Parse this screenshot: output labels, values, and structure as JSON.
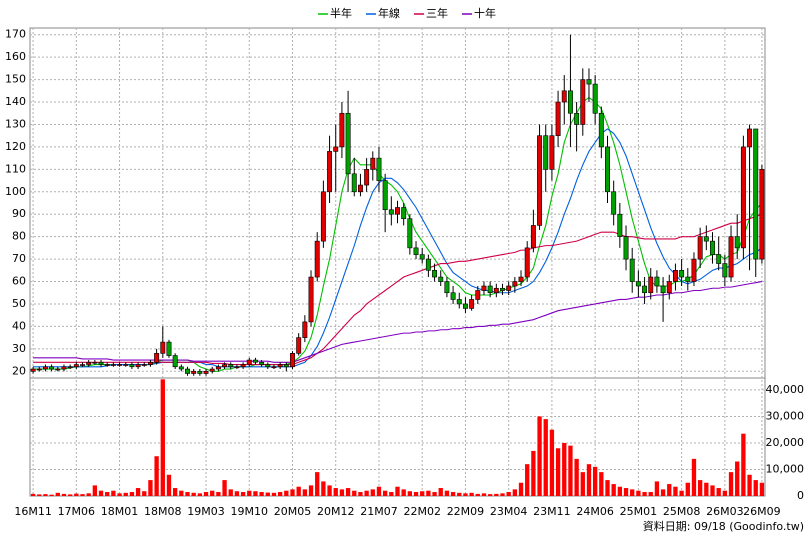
{
  "chart_data": {
    "type": "candlestick",
    "legend": [
      "半年",
      "年線",
      "三年",
      "十年"
    ],
    "footer": "資料日期: 09/18 (Goodinfo.tw)",
    "up_color": "#e00000",
    "down_color": "#00a000",
    "grid": true,
    "ylim": [
      17,
      173
    ],
    "yticks": [
      20,
      30,
      40,
      50,
      60,
      70,
      80,
      90,
      100,
      110,
      120,
      130,
      140,
      150,
      160,
      170
    ],
    "y2lim": [
      0,
      44500
    ],
    "y2ticks": [
      {
        "value": 0,
        "label": "0"
      },
      {
        "value": 10000,
        "label": "10,000"
      },
      {
        "value": 20000,
        "label": "20,000"
      },
      {
        "value": 30000,
        "label": "30,000"
      },
      {
        "value": 40000,
        "label": "40,000"
      }
    ],
    "volume_color": "#ff0000",
    "categories": [
      "16M11",
      null,
      null,
      null,
      null,
      null,
      null,
      "17M06",
      null,
      null,
      null,
      null,
      null,
      null,
      "18M01",
      null,
      null,
      null,
      null,
      null,
      null,
      "18M08",
      null,
      null,
      null,
      null,
      null,
      null,
      "19M03",
      null,
      null,
      null,
      null,
      null,
      null,
      "19M10",
      null,
      null,
      null,
      null,
      null,
      null,
      "20M05",
      null,
      null,
      null,
      null,
      null,
      null,
      "20M12",
      null,
      null,
      null,
      null,
      null,
      null,
      "21M07",
      null,
      null,
      null,
      null,
      null,
      null,
      "22M02",
      null,
      null,
      null,
      null,
      null,
      null,
      "22M09",
      null,
      null,
      null,
      null,
      null,
      null,
      "23M04",
      null,
      null,
      null,
      null,
      null,
      null,
      "23M11",
      null,
      null,
      null,
      null,
      null,
      null,
      "24M06",
      null,
      null,
      null,
      null,
      null,
      null,
      "25M01",
      null,
      null,
      null,
      null,
      null,
      null,
      "25M08",
      null,
      null,
      null,
      null,
      null,
      null,
      "26M03",
      null,
      null,
      null,
      null,
      null,
      "26M09"
    ],
    "open": [
      20,
      21,
      21,
      22,
      21,
      21,
      22,
      22,
      23,
      23,
      24,
      24,
      23,
      23,
      23,
      23,
      23,
      22,
      23,
      23,
      24,
      28,
      33,
      27,
      22,
      21,
      19,
      20,
      19,
      20,
      21,
      22,
      23,
      22,
      22,
      23,
      25,
      24,
      23,
      22,
      22,
      23,
      22,
      28,
      35,
      42,
      62,
      78,
      100,
      118,
      120,
      135,
      108,
      100,
      103,
      110,
      115,
      105,
      92,
      90,
      93,
      88,
      75,
      72,
      70,
      65,
      62,
      60,
      55,
      52,
      50,
      48,
      52,
      56,
      58,
      55,
      57,
      56,
      58,
      60,
      62,
      75,
      85,
      125,
      110,
      125,
      140,
      145,
      135,
      130,
      150,
      148,
      135,
      120,
      100,
      90,
      80,
      70,
      60,
      58,
      55,
      62,
      58,
      55,
      60,
      65,
      62,
      60,
      70,
      80,
      78,
      72,
      68,
      62,
      80,
      75,
      120,
      128,
      70
    ],
    "high": [
      22,
      22,
      23,
      23,
      22,
      23,
      23,
      24,
      24,
      25,
      25,
      25,
      24,
      24,
      24,
      24,
      24,
      24,
      24,
      25,
      30,
      40,
      34,
      28,
      23,
      22,
      21,
      21,
      21,
      22,
      23,
      24,
      24,
      23,
      24,
      26,
      26,
      25,
      24,
      23,
      24,
      24,
      29,
      37,
      45,
      65,
      82,
      105,
      125,
      130,
      140,
      145,
      115,
      108,
      115,
      118,
      120,
      108,
      98,
      96,
      95,
      90,
      78,
      75,
      72,
      68,
      65,
      62,
      58,
      55,
      53,
      54,
      58,
      60,
      60,
      59,
      59,
      60,
      62,
      65,
      78,
      92,
      130,
      130,
      130,
      145,
      152,
      170,
      140,
      155,
      155,
      152,
      138,
      125,
      105,
      95,
      85,
      75,
      65,
      62,
      66,
      65,
      62,
      63,
      68,
      70,
      66,
      73,
      84,
      85,
      82,
      80,
      72,
      85,
      90,
      125,
      130,
      128,
      112
    ],
    "low": [
      19,
      20,
      20,
      20,
      20,
      20,
      21,
      21,
      22,
      22,
      23,
      22,
      22,
      22,
      22,
      22,
      21,
      21,
      22,
      22,
      23,
      26,
      26,
      21,
      20,
      18,
      18,
      18,
      18,
      19,
      20,
      21,
      21,
      21,
      21,
      22,
      23,
      22,
      21,
      21,
      21,
      20,
      21,
      27,
      33,
      40,
      60,
      75,
      95,
      100,
      115,
      100,
      98,
      98,
      100,
      105,
      100,
      82,
      85,
      86,
      85,
      72,
      70,
      68,
      62,
      60,
      58,
      53,
      50,
      48,
      46,
      47,
      50,
      54,
      53,
      53,
      54,
      54,
      55,
      58,
      60,
      73,
      83,
      100,
      105,
      120,
      130,
      120,
      118,
      125,
      140,
      130,
      115,
      95,
      85,
      75,
      65,
      55,
      53,
      50,
      52,
      55,
      42,
      52,
      56,
      58,
      56,
      58,
      66,
      74,
      68,
      65,
      58,
      60,
      70,
      70,
      65,
      62,
      68
    ],
    "close": [
      21,
      21,
      22,
      21,
      21,
      22,
      22,
      23,
      23,
      24,
      24,
      23,
      23,
      23,
      23,
      23,
      22,
      23,
      23,
      24,
      28,
      33,
      27,
      22,
      21,
      19,
      20,
      19,
      20,
      21,
      22,
      23,
      22,
      22,
      23,
      25,
      24,
      23,
      22,
      22,
      23,
      22,
      28,
      35,
      42,
      62,
      78,
      100,
      118,
      120,
      135,
      108,
      100,
      103,
      110,
      115,
      105,
      92,
      90,
      93,
      88,
      75,
      72,
      70,
      65,
      62,
      60,
      55,
      52,
      50,
      48,
      52,
      56,
      58,
      55,
      57,
      56,
      58,
      60,
      62,
      75,
      85,
      125,
      110,
      125,
      140,
      145,
      135,
      130,
      150,
      148,
      135,
      120,
      100,
      90,
      80,
      70,
      60,
      58,
      55,
      62,
      58,
      55,
      60,
      65,
      62,
      60,
      70,
      80,
      78,
      72,
      68,
      62,
      80,
      75,
      120,
      128,
      70,
      110
    ],
    "volume": [
      800,
      600,
      700,
      500,
      1200,
      800,
      600,
      900,
      700,
      1000,
      4000,
      2000,
      1500,
      2000,
      1000,
      1200,
      1500,
      3000,
      1800,
      6000,
      15000,
      44000,
      8000,
      3000,
      2000,
      1500,
      1200,
      1000,
      1500,
      2000,
      1500,
      6000,
      2500,
      1800,
      1500,
      2000,
      1800,
      1500,
      1300,
      1200,
      1500,
      2000,
      2500,
      3500,
      2500,
      4000,
      9000,
      5500,
      4000,
      3000,
      2500,
      3000,
      2000,
      1500,
      2000,
      2500,
      3500,
      2000,
      1500,
      3500,
      2500,
      1800,
      1500,
      1800,
      2000,
      1500,
      3000,
      2000,
      1500,
      1200,
      1000,
      1200,
      800,
      1000,
      700,
      800,
      1000,
      1500,
      2500,
      5000,
      12000,
      17000,
      30000,
      29000,
      25000,
      18000,
      20000,
      19000,
      14000,
      9000,
      12000,
      11000,
      9000,
      6000,
      4500,
      3500,
      3000,
      2500,
      2000,
      1500,
      1500,
      5500,
      2500,
      4500,
      3500,
      2000,
      5000,
      14000,
      6000,
      5000,
      4000,
      3000,
      2000,
      9000,
      13000,
      23500,
      8000,
      6000,
      5000
    ],
    "series": [
      {
        "name": "半年",
        "color": "#00c000",
        "values": [
          21,
          21,
          21,
          21,
          21,
          21,
          21.5,
          22,
          22,
          22.5,
          23,
          23,
          23,
          23,
          23,
          23,
          23,
          23,
          23,
          23,
          24,
          25,
          25,
          25,
          25,
          25,
          24,
          22,
          21,
          20,
          20,
          21,
          21,
          22,
          22,
          22,
          23,
          23,
          23,
          23,
          23,
          23,
          24,
          26,
          29,
          35,
          45,
          58,
          70,
          85,
          100,
          110,
          115,
          112,
          112,
          112,
          108,
          105,
          103,
          100,
          95,
          88,
          82,
          78,
          74,
          70,
          66,
          62,
          60,
          58,
          55,
          54,
          54,
          54,
          54,
          55,
          56,
          57,
          58,
          59,
          62,
          66,
          76,
          85,
          98,
          108,
          122,
          130,
          135,
          140,
          142,
          140,
          137,
          130,
          122,
          112,
          100,
          88,
          78,
          68,
          60,
          58,
          58,
          58,
          60,
          60,
          61,
          63,
          67,
          71,
          72,
          72,
          70,
          72,
          73,
          80,
          88,
          92,
          95
        ]
      },
      {
        "name": "年線",
        "color": "#0060e0",
        "values": [
          22,
          22,
          22,
          22,
          22,
          22,
          22,
          22,
          22,
          22,
          22,
          22,
          22.5,
          23,
          23,
          23,
          23,
          23,
          23,
          23,
          23.5,
          24,
          24,
          24,
          24,
          24,
          24,
          24,
          23,
          23,
          22,
          22,
          22,
          22,
          22,
          22,
          22,
          22,
          22,
          22,
          22,
          22,
          22,
          23,
          24,
          27,
          31,
          37,
          44,
          52,
          60,
          68,
          76,
          85,
          93,
          100,
          104,
          106,
          106,
          104,
          101,
          97,
          93,
          88,
          83,
          78,
          73,
          68,
          64,
          62,
          60,
          58,
          57,
          56,
          56,
          55,
          55,
          55,
          56,
          57,
          58,
          60,
          64,
          69,
          75,
          82,
          90,
          97,
          105,
          112,
          118,
          122,
          126,
          128,
          126,
          122,
          116,
          108,
          100,
          92,
          84,
          77,
          71,
          66,
          63,
          60,
          59,
          60,
          61,
          63,
          65,
          66,
          66,
          67,
          68,
          70,
          72,
          73,
          75
        ]
      },
      {
        "name": "三年",
        "color": "#d0004a",
        "values": [
          24,
          24,
          24,
          24,
          24,
          24,
          24,
          24,
          24,
          24,
          24,
          24,
          24,
          24,
          24,
          24,
          24,
          24,
          24,
          24,
          24,
          24,
          24,
          24,
          24,
          24,
          24,
          24,
          24,
          23.5,
          23.5,
          23.5,
          23,
          23,
          23,
          23,
          23,
          23,
          23,
          23,
          23,
          23,
          23,
          24,
          25,
          26,
          28,
          30,
          33,
          36,
          39,
          42,
          45,
          47,
          50,
          52,
          54,
          56,
          58,
          60,
          62,
          63,
          64,
          65,
          66,
          67,
          68,
          68,
          68.5,
          69,
          69,
          69.5,
          70,
          70.5,
          71,
          71.5,
          72,
          72.5,
          73,
          74,
          74,
          75,
          75.5,
          76,
          76,
          76.5,
          77,
          77.5,
          78,
          79,
          80,
          81,
          82,
          82,
          82,
          81,
          80,
          80,
          79.5,
          79,
          79,
          79,
          79,
          79,
          79,
          80,
          80,
          80,
          81,
          82,
          83,
          84,
          85,
          86,
          86,
          87,
          88,
          89,
          90
        ]
      },
      {
        "name": "十年",
        "color": "#8000c0",
        "values": [
          26,
          26,
          26,
          26,
          26,
          26,
          26,
          26,
          25.5,
          25.5,
          25.5,
          25.5,
          25.5,
          25,
          25,
          25,
          25,
          25,
          25,
          25,
          25,
          25,
          25,
          25,
          25,
          25,
          24.5,
          24.5,
          24.5,
          24.5,
          24.5,
          24.5,
          24.5,
          24.5,
          24.5,
          24.5,
          24.5,
          24.5,
          24.5,
          24,
          24,
          24,
          24,
          25,
          26,
          27,
          28,
          29,
          30,
          31,
          32,
          32.5,
          33,
          33.5,
          34,
          34.5,
          35,
          35.5,
          36,
          36.5,
          37,
          37,
          37.5,
          37.5,
          38,
          38,
          38.5,
          38.5,
          39,
          39,
          39.5,
          39.5,
          40,
          40,
          40.5,
          40.5,
          41,
          41,
          41.5,
          42,
          42.5,
          43,
          44,
          45,
          46,
          47,
          47.5,
          48,
          48.5,
          49,
          49.5,
          50,
          50.5,
          51,
          51.5,
          52,
          52,
          52.5,
          53,
          53,
          53.5,
          54,
          54,
          54.5,
          55,
          55,
          55.5,
          56,
          56,
          56.5,
          57,
          57,
          57.5,
          57.5,
          58,
          58.5,
          59,
          59.5,
          60
        ]
      }
    ]
  }
}
